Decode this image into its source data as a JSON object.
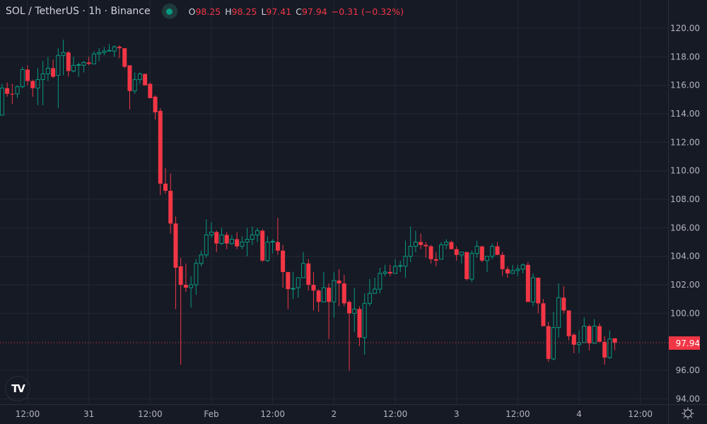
{
  "header": {
    "symbol_title": "SOL / TetherUS · 1h · Binance",
    "status_color": "#089981",
    "ohlc": {
      "open_label": "O",
      "open": "98.25",
      "high_label": "H",
      "high": "98.25",
      "low_label": "L",
      "low": "97.41",
      "close_label": "C",
      "close": "97.94",
      "change": "−0.31 (−0.32%)"
    }
  },
  "price_axis": {
    "ticks": [
      "120.00",
      "118.00",
      "116.00",
      "114.00",
      "112.00",
      "110.00",
      "108.00",
      "106.00",
      "104.00",
      "102.00",
      "100.00",
      "96.00",
      "94.00"
    ],
    "last_price_label": "97.94"
  },
  "time_axis": {
    "ticks": [
      "12:00",
      "31",
      "12:00",
      "Feb",
      "12:00",
      "2",
      "12:00",
      "3",
      "12:00",
      "4",
      "12:00"
    ]
  },
  "colors": {
    "background": "#161a25",
    "grid": "#242833",
    "up": "#089981",
    "down": "#f23645",
    "axis_text": "#b2b5be"
  },
  "logo_text": "TV",
  "chart_data": {
    "type": "candlestick",
    "title": "SOL / TetherUS · 1h · Binance",
    "interval": "1h",
    "ylim": [
      93.5,
      121
    ],
    "last_price": 97.94,
    "x_ticks": [
      "12:00",
      "31",
      "12:00",
      "Feb",
      "12:00",
      "2",
      "12:00",
      "3",
      "12:00",
      "4",
      "12:00"
    ],
    "y_ticks": [
      94,
      96,
      98,
      100,
      102,
      104,
      106,
      108,
      110,
      112,
      114,
      116,
      118,
      120
    ],
    "first_index": -5,
    "candles": [
      [
        113.9,
        116.1,
        113.9,
        115.8
      ],
      [
        115.8,
        116.2,
        115.2,
        115.4
      ],
      [
        115.4,
        116.1,
        114.7,
        115.35
      ],
      [
        115.4,
        116.0,
        115.1,
        115.9
      ],
      [
        115.9,
        117.3,
        115.8,
        117.1
      ],
      [
        117.1,
        117.4,
        116.0,
        116.3
      ],
      [
        116.3,
        116.4,
        115.2,
        115.8
      ],
      [
        115.8,
        117.2,
        114.6,
        116.4
      ],
      [
        116.4,
        117.7,
        114.6,
        116.8
      ],
      [
        116.8,
        118.0,
        116.3,
        117.2
      ],
      [
        117.2,
        117.8,
        116.5,
        116.6
      ],
      [
        116.7,
        118.6,
        114.4,
        118.1
      ],
      [
        118.1,
        119.2,
        116.7,
        118.3
      ],
      [
        118.3,
        118.4,
        116.6,
        117.0
      ],
      [
        117.0,
        118.0,
        116.9,
        117.4
      ],
      [
        117.4,
        117.6,
        116.6,
        117.45
      ],
      [
        117.4,
        117.7,
        116.9,
        117.6
      ],
      [
        117.6,
        118.0,
        117.4,
        117.5
      ],
      [
        117.5,
        118.4,
        117.5,
        118.2
      ],
      [
        118.2,
        118.6,
        117.7,
        118.3
      ],
      [
        118.3,
        118.7,
        118.1,
        118.4
      ],
      [
        118.4,
        118.9,
        118.4,
        118.45
      ],
      [
        118.4,
        118.8,
        118.0,
        118.7
      ],
      [
        118.7,
        118.8,
        117.9,
        118.6
      ],
      [
        118.6,
        118.6,
        117.2,
        117.3
      ],
      [
        117.4,
        117.4,
        114.3,
        115.6
      ],
      [
        115.6,
        116.9,
        115.4,
        116.4
      ],
      [
        116.4,
        116.9,
        116.1,
        116.8
      ],
      [
        116.8,
        116.8,
        116.0,
        116.0
      ],
      [
        116.1,
        116.2,
        115.1,
        115.1
      ],
      [
        115.2,
        115.3,
        113.6,
        114.1
      ],
      [
        114.2,
        114.4,
        108.3,
        109.1
      ],
      [
        109.1,
        110.2,
        108.4,
        108.6
      ],
      [
        108.6,
        109.8,
        105.6,
        106.3
      ],
      [
        106.3,
        106.8,
        100.3,
        103.2
      ],
      [
        103.3,
        103.9,
        96.4,
        102.0
      ],
      [
        102.0,
        103.5,
        101.5,
        101.8
      ],
      [
        101.8,
        102.6,
        100.4,
        102.0
      ],
      [
        102.0,
        103.8,
        101.3,
        103.5
      ],
      [
        103.5,
        104.4,
        103.3,
        104.1
      ],
      [
        104.1,
        106.6,
        103.9,
        105.5
      ],
      [
        105.5,
        106.4,
        105.3,
        105.7
      ],
      [
        105.7,
        105.8,
        104.3,
        104.9
      ],
      [
        104.9,
        106.0,
        104.8,
        105.5
      ],
      [
        105.5,
        105.7,
        104.5,
        104.9
      ],
      [
        104.9,
        105.5,
        104.8,
        105.2
      ],
      [
        105.2,
        105.7,
        104.5,
        104.7
      ],
      [
        104.7,
        105.4,
        104.5,
        105.0
      ],
      [
        105.0,
        106.0,
        104.0,
        105.2
      ],
      [
        105.2,
        106.1,
        104.8,
        105.5
      ],
      [
        105.5,
        106.0,
        105.0,
        105.8
      ],
      [
        105.8,
        105.9,
        103.6,
        103.7
      ],
      [
        103.7,
        105.4,
        103.6,
        105.0
      ],
      [
        105.0,
        105.2,
        104.2,
        105.05
      ],
      [
        105.0,
        106.7,
        104.1,
        104.4
      ],
      [
        104.4,
        104.8,
        101.8,
        102.9
      ],
      [
        102.9,
        102.9,
        100.3,
        101.7
      ],
      [
        101.7,
        102.9,
        101.0,
        101.75
      ],
      [
        101.8,
        102.5,
        101.1,
        102.5
      ],
      [
        102.5,
        104.3,
        102.5,
        103.5
      ],
      [
        103.5,
        103.8,
        101.6,
        102.0
      ],
      [
        102.0,
        102.9,
        100.2,
        101.6
      ],
      [
        101.6,
        101.7,
        100.1,
        100.8
      ],
      [
        100.8,
        102.9,
        100.8,
        101.8
      ],
      [
        101.8,
        102.1,
        98.2,
        100.8
      ],
      [
        100.8,
        102.9,
        99.7,
        102.3
      ],
      [
        102.3,
        103.1,
        100.5,
        102.1
      ],
      [
        102.1,
        102.7,
        100.5,
        100.7
      ],
      [
        100.8,
        100.9,
        96.0,
        100.0
      ],
      [
        100.0,
        101.8,
        98.7,
        100.3
      ],
      [
        100.3,
        100.5,
        97.7,
        98.3
      ],
      [
        98.3,
        101.4,
        97.1,
        100.7
      ],
      [
        100.7,
        102.4,
        100.5,
        101.4
      ],
      [
        101.4,
        102.5,
        101.4,
        101.7
      ],
      [
        101.7,
        103.2,
        101.4,
        102.8
      ],
      [
        102.8,
        103.4,
        102.6,
        102.9
      ],
      [
        102.9,
        103.4,
        102.6,
        102.8
      ],
      [
        102.8,
        103.8,
        102.8,
        103.3
      ],
      [
        103.3,
        103.7,
        102.9,
        103.35
      ],
      [
        103.3,
        105.1,
        102.5,
        104.0
      ],
      [
        104.0,
        106.1,
        103.6,
        104.7
      ],
      [
        104.7,
        105.8,
        104.3,
        105.0
      ],
      [
        105.0,
        105.6,
        104.5,
        104.8
      ],
      [
        104.8,
        105.0,
        103.9,
        104.7
      ],
      [
        104.7,
        104.8,
        103.5,
        103.8
      ],
      [
        103.8,
        104.3,
        103.3,
        103.7
      ],
      [
        103.8,
        105.0,
        103.8,
        104.8
      ],
      [
        104.8,
        105.2,
        104.5,
        105.0
      ],
      [
        105.0,
        105.1,
        104.5,
        104.5
      ],
      [
        104.5,
        104.7,
        103.7,
        104.1
      ],
      [
        104.1,
        104.3,
        103.5,
        104.3
      ],
      [
        104.3,
        104.3,
        102.3,
        102.4
      ],
      [
        102.4,
        104.4,
        102.2,
        104.2
      ],
      [
        104.2,
        105.1,
        103.9,
        104.7
      ],
      [
        104.7,
        104.7,
        103.6,
        103.7
      ],
      [
        103.7,
        104.0,
        102.9,
        104.0
      ],
      [
        104.0,
        104.9,
        103.8,
        104.7
      ],
      [
        104.7,
        105.0,
        104.1,
        104.1
      ],
      [
        104.1,
        104.3,
        102.6,
        103.1
      ],
      [
        103.1,
        103.3,
        102.5,
        102.8
      ],
      [
        102.8,
        103.4,
        102.8,
        103.0
      ],
      [
        103.0,
        103.4,
        102.6,
        103.1
      ],
      [
        103.1,
        103.5,
        102.8,
        103.4
      ],
      [
        103.4,
        103.6,
        100.8,
        100.8
      ],
      [
        100.8,
        102.8,
        100.5,
        102.5
      ],
      [
        102.5,
        102.5,
        100.0,
        100.7
      ],
      [
        100.7,
        101.0,
        99.1,
        99.1
      ],
      [
        99.1,
        99.4,
        96.6,
        96.8
      ],
      [
        96.8,
        100.1,
        96.7,
        99.0
      ],
      [
        99.0,
        102.1,
        98.3,
        101.1
      ],
      [
        101.1,
        101.9,
        100.0,
        100.2
      ],
      [
        100.2,
        100.2,
        98.1,
        98.4
      ],
      [
        98.5,
        98.6,
        97.2,
        97.8
      ],
      [
        97.8,
        98.8,
        97.2,
        97.95
      ],
      [
        97.95,
        99.7,
        97.95,
        99.1
      ],
      [
        99.1,
        99.2,
        97.4,
        97.9
      ],
      [
        97.9,
        99.6,
        97.9,
        99.1
      ],
      [
        99.1,
        99.3,
        98.0,
        98.0
      ],
      [
        98.0,
        98.4,
        96.4,
        96.9
      ],
      [
        96.9,
        98.8,
        96.8,
        98.2
      ],
      [
        98.25,
        98.25,
        97.41,
        97.94
      ]
    ]
  }
}
